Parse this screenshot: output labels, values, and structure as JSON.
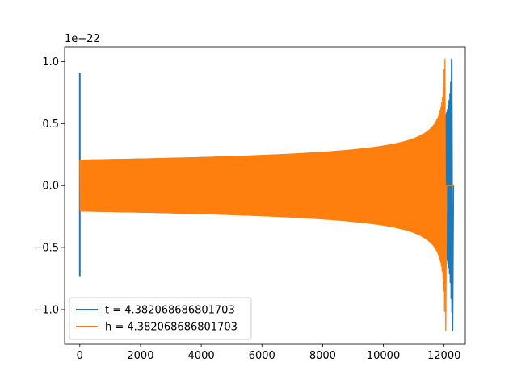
{
  "chart_data": {
    "type": "line",
    "title": "",
    "xlabel": "",
    "ylabel": "",
    "offset_text": "1e−22",
    "xlim": [
      -500,
      12700
    ],
    "ylim": [
      -1.28,
      1.12
    ],
    "xticks": [
      0,
      2000,
      4000,
      6000,
      8000,
      10000,
      12000
    ],
    "xtick_labels": [
      "0",
      "2000",
      "4000",
      "6000",
      "8000",
      "10000",
      "12000"
    ],
    "yticks": [
      -1.0,
      -0.5,
      0.0,
      0.5,
      1.0
    ],
    "ytick_labels": [
      "−1.0",
      "−0.5",
      "0.0",
      "0.5",
      "1.0"
    ],
    "grid": false,
    "legend_position": "lower-left",
    "series": [
      {
        "name": "t = 4.382068686801703",
        "color": "#1f77b4",
        "style": "chirp",
        "start_x": 0,
        "merge_x": 12260,
        "end_x": 12330,
        "spike_at_start": [
          -0.73,
          0.91
        ],
        "base_amplitude": 0.205,
        "merger_extent": [
          -1.17,
          1.02
        ]
      },
      {
        "name": "h = 4.382068686801703",
        "color": "#ff7f0e",
        "style": "chirp",
        "start_x": 0,
        "merge_x": 12030,
        "end_x": 12330,
        "base_amplitude": 0.205,
        "merger_extent": [
          -1.17,
          1.02
        ]
      }
    ]
  }
}
